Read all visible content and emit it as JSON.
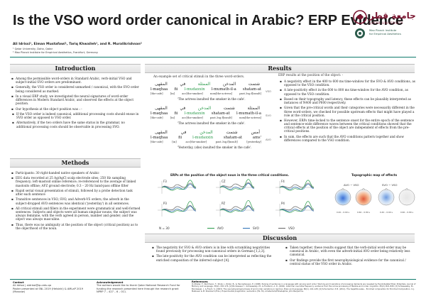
{
  "title": "Is the VSO word order canonical in Arabic? ERP Evidence",
  "authors": "Ali Idrissi¹, Eiman Mustafawi¹, Tariq Khwaileh¹, and R. Muralikrishnan²",
  "affiliations": [
    "¹ Qatar University, Doha, Qatar",
    "² Max Planck Institute for Empirical Aesthetics, Frankfurt, Germany"
  ],
  "logos": {
    "qu_arabic": "جامعة قطر",
    "qu_english": "QATAR UNIVERSITY",
    "mpi": [
      "Max Planck Institute",
      "for Empirical Aesthetics"
    ]
  },
  "sections": {
    "introduction": {
      "heading": "Introduction",
      "bullets": [
        "Among the permissible word-orders in Standard Arabic, verb-initial VSO and subject-initial SVO orders are predominant.",
        "Generally, the VSO order is considered unmarked / canonical, with the SVO order being considered as marked.",
        "In a visual ERP study, we investigated the neural signatures of word-order differences in Modern Standard Arabic, and observed the effects at the object position.",
        "Our hypothesis at the object position was : -"
      ],
      "sub_bullets": [
        "If the VSO order is indeed canonical, additional processing costs should ensue in SVO order as opposed to VSO order.",
        "Alternatively, if the two orders have the same status in the grammar, no additional processing costs should be observable in processing SVO."
      ]
    },
    "methods": {
      "heading": "Methods",
      "bullets": [
        "Participants: 30 right-handed native speakers of Arabic",
        "EEG data recorded at 25 Ag/AgCl scalp electrode sites; 250 Hz sampling frequency; left-mastoid online reference; re-referenced to the average of linked mastoids offline; AFZ ground electrode; 0.3 – 20 Hz band-pass offline filter",
        "Rapid serial visual presentation of stimuli, followed by a probe detection task after each sentence",
        "Transitive sentences in VSO, SVO, and Adverb-VS orders; the adverb in the subject-dropped AVO sentences was identical ('yesterday') in all sentences.",
        "All critical stimuli and fillers in the experiment were grammatical and well-formed sentences. Subjects and objects were all human singular nouns; the subject was always feminine, with the verb agreed in person, number and gender; and the object was always masculine.",
        "Thus, there was no ambiguity at the position of the object (critical position) as to the objecthood of the noun."
      ]
    },
    "results": {
      "heading": "Results",
      "stim_caption": "An example set of critical stimuli in the three word-orders.",
      "stimuli": [
        {
          "tag": "VSO",
          "arabic": [
            "شتمت",
            "المدخن",
            "الممثلة",
            "في",
            "المقهى"
          ],
          "translit": [
            "shatam-at",
            "l-mumath-il-a",
            "l-mudaxxin",
            "fii",
            "l-maqhaa"
          ],
          "gloss": [
            "[insult]past.3sg.f",
            "[the-actress]nom",
            "[the-smoker]acc",
            "[in]",
            "[the-cafe]"
          ],
          "free": "'The actress insulted the smoker in the cafe'."
        },
        {
          "tag": "SVO",
          "arabic": [
            "الممثلة",
            "شتمت",
            "المدخن",
            "في",
            "المقهى"
          ],
          "translit": [
            "l-mumath-il-a",
            "shatam-at",
            "l-mudaxxin",
            "fii",
            "l-maqhaa"
          ],
          "gloss": [
            "[the-actress]nom",
            "[insult]past.3sg.f",
            "[the-smoker]acc",
            "[in]",
            "[the-cafe]"
          ],
          "free": "'The actress insulted the smoker in the cafe'."
        },
        {
          "tag": "AVO",
          "arabic": [
            "أمس",
            "شتمت",
            "المدخن",
            "في",
            "المقهى"
          ],
          "translit": [
            "'ams",
            "shatam-at",
            "l-mudaxxin",
            "fii",
            "l-maqhaa"
          ],
          "gloss": [
            "[yesterday]",
            "[insult]past.3sg.f",
            "[the-smoker]acc",
            "[in]",
            "[the-cafe]"
          ],
          "free": "'Yesterday, (she) insulted the smoker in the cafe'."
        }
      ],
      "erp_intro": "ERP results at the position of the object: -",
      "erp_bullets": [
        "A negativity effect in the 400 to 600 ms time-window for the SVO & AVO conditions, as opposed to the VSO condition.",
        "A late-positivity effect in the 600 to 800 ms time-window for the AVO condition, as opposed to the VSO condition.",
        "Based on their topography and latency, these effects can be plausibly interpreted as instances of N400 and P600 respectively.",
        "Given that the pre-critical words and their categories were necessarily different in the three word-orders, we checked for possible upstream effects that might have played a role at the critical position.",
        "However, ERPs time-locked to the sentence onset for the entire epoch of the sentence and sentence-wide difference waves between the critical conditions showed that the critical effects at the position of the object are independent of effects from the pre-critical positions.",
        "In sum, the effects are such that the AVO conditions pattern together and show differences compared to the VSO condition."
      ],
      "erp_fig_title": "ERPs at the position of the object noun in the three critical conditions.",
      "topo_fig_title": "Topographic map of effects",
      "electrodes": [
        "F3",
        "CZ",
        "F4",
        "P3",
        "PZ",
        "P4"
      ],
      "n_label": "N = 30",
      "legend": [
        "AVO",
        "SVO",
        "VSO"
      ],
      "topo_labels": [
        "AVO − VSO",
        "SVO − VSO"
      ],
      "topo_windows": [
        "0.40 – 0.60 s",
        "0.60 – 0.80 s",
        "0.40 – 0.60 s",
        "0.60 – 0.80 s"
      ]
    },
    "discussion": {
      "heading": "Discussion",
      "left": [
        "The negativity for SVO & AVO orders is in line with scrambling negativities found previously for processing non-canonical orders in German [1,2,3].",
        "The late-positivity for the AVO condition can be interpreted as reflecting the enriched composition of the inferred subject [4]."
      ],
      "right": [
        "Taken together, these results suggest that the verb-initial word-order may be canonical in Arabic, with even the adverb-initial AVO order being relatively less canonical.",
        "Our findings provide the first neurophysiological evidence for the canonical / central status of the VSO order in Arabic."
      ]
    }
  },
  "footer": {
    "contact_head": "Contact",
    "contact": [
      "Ali Idrissi | aidrissi@qu.edu.qa",
      "Poster presented at SNL 2019 (Helsinki) & AMLaP 2019 (Moscow)"
    ],
    "ack_head": "Acknowledgement",
    "ack": "The authors would like to thank Qatar National Research Fund for funding the research presented here through the research grant NPRP 7 – 427 – 6 – 011.",
    "refs_head": "References",
    "refs": "[1] Rösler, F., Pechmann, T., Streb, J., Röder, B., & Hennighausen, E. (1998). Parsing of sentences in a language with varying word order: Word-by-word variations of processing demands are revealed by Event-Related Brain Potentials. Journal of Memory and Language, 38(2), 150–176. [2] Bornkessel, I., Schlesewsky, M., & Friederici, A. D. (2002). Grammar overrides frequency: evidence from the online processing of flexible word order. Cognition, 85(2), B21–B30. [3] Schlesewsky, M., Bornkessel, I., & Frisch, S. (2003). The neurophysiological basis of word order variations in German. Brain and Language, 86(1), 116–128. [4] Schumacher, P. B. (2011). The hepatitis sales... Enriched composition for Enriched Composition. In J. Meibauer & M. Steinbach (Eds.), Experimental pragmatics / semantics (59–76). Amsterdam/Philadelphia: John Benjamins.",
    "colors": {
      "teal": "#0e7a6c",
      "avo": "#2a9a4a",
      "svo": "#2a6fb4",
      "vso": "#666666",
      "maroon": "#7a1530"
    }
  }
}
